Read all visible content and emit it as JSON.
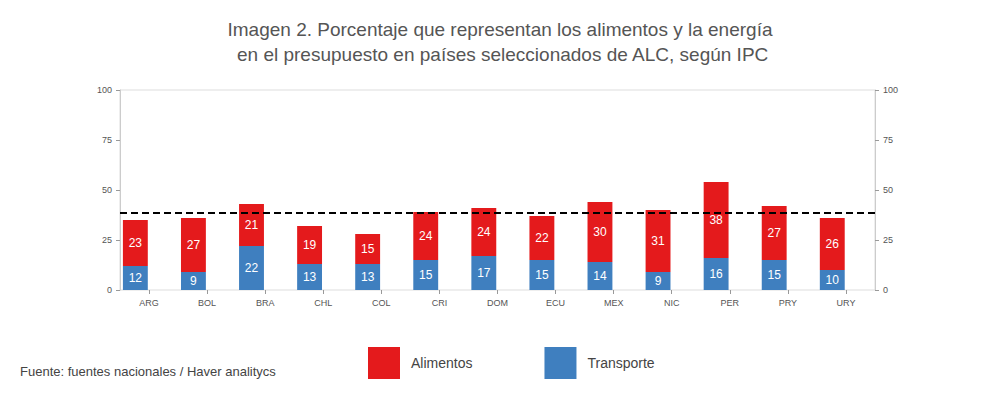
{
  "chart_data": {
    "type": "bar",
    "title": "Imagen 2. Porcentaje que representan los alimentos y la energía\n en el presupuesto en países seleccionados de ALC, según IPC",
    "source": "Fuente: fuentes nacionales / Haver analitycs",
    "categories": [
      "ARG",
      "BOL",
      "BRA",
      "CHL",
      "COL",
      "CRI",
      "DOM",
      "ECU",
      "MEX",
      "NIC",
      "PER",
      "PRY",
      "URY"
    ],
    "series": [
      {
        "name": "Alimentos",
        "color": "#e41a1c",
        "values": [
          23,
          27,
          21,
          19,
          15,
          24,
          24,
          22,
          30,
          31,
          38,
          27,
          26
        ]
      },
      {
        "name": "Transporte",
        "color": "#3f7fbf",
        "values": [
          12,
          9,
          22,
          13,
          13,
          15,
          17,
          15,
          14,
          9,
          16,
          15,
          10
        ]
      }
    ],
    "reference_line": 38.5,
    "ylim": [
      0,
      100
    ],
    "yticks": [
      0,
      25,
      50,
      75,
      100
    ],
    "stacked": true,
    "data_labels": true,
    "grid": false,
    "legend": "bottom"
  }
}
